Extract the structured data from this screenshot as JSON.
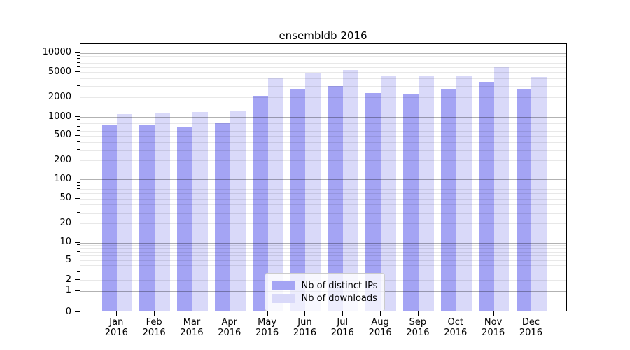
{
  "chart_data": {
    "type": "bar",
    "title": "ensembldb 2016",
    "categories": [
      "Jan",
      "Feb",
      "Mar",
      "Apr",
      "May",
      "Jun",
      "Jul",
      "Aug",
      "Sep",
      "Oct",
      "Nov",
      "Dec"
    ],
    "category_year": "2016",
    "series": [
      {
        "name": "Nb of distinct IPs",
        "color": "#a4a4f4",
        "values": [
          710,
          730,
          660,
          800,
          2080,
          2640,
          2930,
          2320,
          2190,
          2690,
          3450,
          2640
        ]
      },
      {
        "name": "Nb of downloads",
        "color": "#d9d9f9",
        "values": [
          1070,
          1110,
          1170,
          1190,
          3890,
          4800,
          5300,
          4160,
          4180,
          4320,
          5800,
          4060
        ]
      }
    ],
    "yscale": "symlog",
    "yticks": [
      10000,
      5000,
      2000,
      1000,
      500,
      200,
      100,
      50,
      20,
      10,
      5,
      2,
      1,
      0
    ],
    "ylim": [
      0,
      14000
    ],
    "xlabel": "",
    "ylabel": "",
    "grid": true,
    "legend_position": "lower center",
    "colors": {
      "grid_major": "#b3b3b3",
      "grid_minor": "#e8e8e8",
      "spine": "#000000",
      "background": "#ffffff"
    }
  }
}
